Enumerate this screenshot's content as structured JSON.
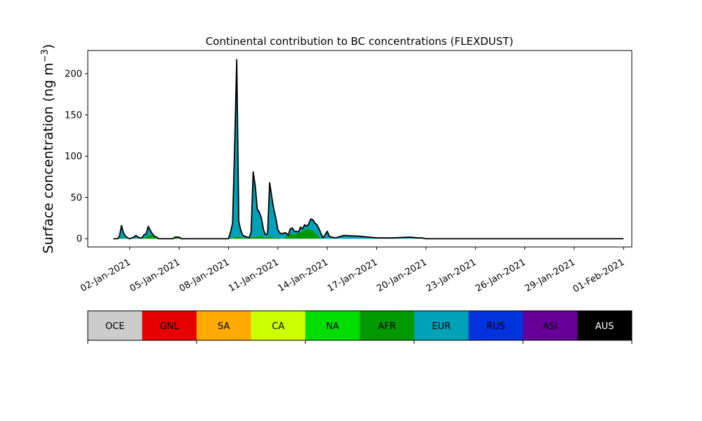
{
  "chart_data": {
    "type": "area",
    "title": "Continental contribution to BC concentrations (FLEXDUST)",
    "xlabel": "",
    "ylabel": "Surface concentration (ng m",
    "ylabel_sup": "−3",
    "ylabel_close": ")",
    "ylim": [
      -10,
      228
    ],
    "yticks": [
      0,
      50,
      100,
      150,
      200
    ],
    "xlim_days": [
      -1.55,
      31.5
    ],
    "xticks": [
      "02-Jan-2021",
      "05-Jan-2021",
      "08-Jan-2021",
      "11-Jan-2021",
      "14-Jan-2021",
      "17-Jan-2021",
      "20-Jan-2021",
      "23-Jan-2021",
      "26-Jan-2021",
      "29-Jan-2021",
      "01-Feb-2021"
    ],
    "grid": false,
    "stacked": true,
    "x_dates": [
      "01-Jan-2021 00:00",
      "01-Jan-2021 03:00",
      "01-Jan-2021 06:00",
      "01-Jan-2021 09:00",
      "01-Jan-2021 12:00",
      "01-Jan-2021 15:00",
      "01-Jan-2021 18:00",
      "01-Jan-2021 21:00",
      "02-Jan-2021 00:00",
      "02-Jan-2021 03:00",
      "02-Jan-2021 06:00",
      "02-Jan-2021 09:00",
      "02-Jan-2021 12:00",
      "02-Jan-2021 15:00",
      "02-Jan-2021 18:00",
      "02-Jan-2021 21:00",
      "03-Jan-2021 00:00",
      "03-Jan-2021 03:00",
      "03-Jan-2021 06:00",
      "03-Jan-2021 09:00",
      "03-Jan-2021 12:00",
      "03-Jan-2021 15:00",
      "03-Jan-2021 18:00",
      "03-Jan-2021 21:00",
      "04-Jan-2021 00:00",
      "04-Jan-2021 03:00",
      "04-Jan-2021 06:00",
      "04-Jan-2021 09:00",
      "04-Jan-2021 12:00",
      "04-Jan-2021 15:00",
      "04-Jan-2021 18:00",
      "04-Jan-2021 21:00",
      "05-Jan-2021 00:00",
      "05-Jan-2021 03:00",
      "05-Jan-2021 06:00",
      "05-Jan-2021 09:00",
      "05-Jan-2021 12:00",
      "05-Jan-2021 15:00",
      "05-Jan-2021 18:00",
      "05-Jan-2021 21:00",
      "06-Jan-2021 00:00",
      "06-Jan-2021 03:00",
      "06-Jan-2021 06:00",
      "06-Jan-2021 09:00",
      "06-Jan-2021 12:00",
      "06-Jan-2021 15:00",
      "06-Jan-2021 18:00",
      "06-Jan-2021 21:00",
      "07-Jan-2021 00:00",
      "07-Jan-2021 03:00",
      "07-Jan-2021 06:00",
      "07-Jan-2021 09:00",
      "07-Jan-2021 12:00",
      "07-Jan-2021 15:00",
      "07-Jan-2021 18:00",
      "07-Jan-2021 21:00",
      "08-Jan-2021 00:00",
      "08-Jan-2021 03:00",
      "08-Jan-2021 06:00",
      "08-Jan-2021 09:00",
      "08-Jan-2021 12:00",
      "08-Jan-2021 15:00",
      "08-Jan-2021 18:00",
      "08-Jan-2021 21:00",
      "09-Jan-2021 00:00",
      "09-Jan-2021 03:00",
      "09-Jan-2021 06:00",
      "09-Jan-2021 09:00",
      "09-Jan-2021 12:00",
      "09-Jan-2021 15:00",
      "09-Jan-2021 18:00",
      "09-Jan-2021 21:00",
      "10-Jan-2021 00:00",
      "10-Jan-2021 03:00",
      "10-Jan-2021 06:00",
      "10-Jan-2021 09:00",
      "10-Jan-2021 12:00",
      "10-Jan-2021 15:00",
      "10-Jan-2021 18:00",
      "10-Jan-2021 21:00",
      "11-Jan-2021 00:00",
      "11-Jan-2021 03:00",
      "11-Jan-2021 06:00",
      "11-Jan-2021 09:00",
      "11-Jan-2021 12:00",
      "11-Jan-2021 15:00",
      "11-Jan-2021 18:00",
      "11-Jan-2021 21:00",
      "12-Jan-2021 00:00",
      "12-Jan-2021 03:00",
      "12-Jan-2021 06:00",
      "12-Jan-2021 09:00",
      "12-Jan-2021 12:00",
      "12-Jan-2021 15:00",
      "12-Jan-2021 18:00",
      "12-Jan-2021 21:00",
      "13-Jan-2021 00:00",
      "13-Jan-2021 03:00",
      "13-Jan-2021 06:00",
      "13-Jan-2021 09:00",
      "13-Jan-2021 12:00",
      "13-Jan-2021 15:00",
      "13-Jan-2021 18:00",
      "13-Jan-2021 21:00",
      "14-Jan-2021 00:00",
      "14-Jan-2021 03:00",
      "14-Jan-2021 06:00",
      "14-Jan-2021 12:00",
      "15-Jan-2021 00:00",
      "16-Jan-2021 00:00",
      "17-Jan-2021 00:00",
      "18-Jan-2021 00:00",
      "19-Jan-2021 00:00",
      "19-Jan-2021 12:00",
      "19-Jan-2021 18:00",
      "20-Jan-2021 00:00",
      "20-Jan-2021 06:00",
      "20-Jan-2021 12:00",
      "21-Jan-2021 00:00",
      "21-Jan-2021 12:00",
      "21-Jan-2021 18:00",
      "22-Jan-2021 00:00",
      "22-Jan-2021 06:00",
      "22-Jan-2021 12:00",
      "22-Jan-2021 18:00",
      "23-Jan-2021 00:00",
      "23-Jan-2021 06:00",
      "23-Jan-2021 12:00",
      "23-Jan-2021 18:00",
      "24-Jan-2021 00:00",
      "24-Jan-2021 12:00",
      "25-Jan-2021 00:00",
      "25-Jan-2021 06:00",
      "25-Jan-2021 09:00",
      "25-Jan-2021 15:00",
      "25-Jan-2021 21:00",
      "26-Jan-2021 03:00",
      "26-Jan-2021 09:00",
      "26-Jan-2021 12:00",
      "27-Jan-2021 00:00",
      "28-Jan-2021 00:00",
      "29-Jan-2021 00:00",
      "30-Jan-2021 00:00",
      "31-Jan-2021 00:00",
      "01-Feb-2021 00:00"
    ],
    "series": [
      {
        "name": "AFR",
        "color": "#009900",
        "values": [
          0,
          0,
          0,
          1,
          1,
          1,
          0,
          0,
          0,
          0,
          0,
          0,
          0,
          0,
          0,
          1,
          2,
          4,
          5,
          4,
          2,
          1,
          0,
          0,
          0,
          0,
          0,
          0,
          0,
          0,
          1,
          1,
          1,
          0,
          0,
          0,
          0,
          0,
          0,
          0,
          0,
          0,
          0,
          0,
          0,
          0,
          0,
          0,
          0,
          0,
          0,
          0,
          0,
          0,
          0,
          0,
          0,
          1,
          1,
          2,
          3,
          3,
          2,
          1,
          1,
          1,
          1,
          2,
          2,
          2,
          3,
          3,
          5,
          2,
          1,
          2,
          3,
          2,
          1,
          1,
          2,
          1,
          0,
          1,
          2,
          3,
          6,
          6,
          5,
          6,
          7,
          8,
          9,
          11,
          12,
          12,
          11,
          10,
          7,
          5,
          2,
          1,
          0,
          0,
          0,
          0,
          0,
          0,
          0,
          0,
          0,
          0,
          0,
          0,
          0,
          0,
          0,
          0,
          0,
          0,
          0,
          0,
          0,
          0,
          0,
          0,
          0,
          0,
          0,
          0,
          0,
          0,
          0,
          0,
          0,
          0,
          0,
          0,
          0,
          0,
          0,
          0
        ]
      },
      {
        "name": "EUR",
        "color": "#00a2b8",
        "values": [
          0,
          0,
          0,
          2,
          13,
          6,
          3,
          1,
          0,
          1,
          2,
          4,
          2,
          1,
          1,
          4,
          4,
          9,
          4,
          2,
          1,
          1,
          0,
          0,
          0,
          0,
          0,
          0,
          0,
          0,
          1,
          1,
          1,
          0,
          0,
          0,
          0,
          0,
          0,
          0,
          0,
          0,
          0,
          0,
          0,
          0,
          0,
          0,
          0,
          0,
          0,
          0,
          0,
          0,
          0,
          0,
          0,
          5,
          14,
          100,
          196,
          15,
          6,
          3,
          2,
          1,
          0,
          6,
          71,
          57,
          30,
          27,
          18,
          8,
          4,
          4,
          60,
          44,
          32,
          22,
          8,
          6,
          6,
          6,
          5,
          1,
          6,
          7,
          4,
          3,
          1,
          6,
          3,
          6,
          3,
          6,
          13,
          13,
          12,
          12,
          10,
          5,
          1,
          5,
          9,
          3,
          2,
          1,
          4,
          3,
          1,
          1,
          2,
          1,
          1,
          0,
          0,
          0,
          0,
          0,
          0,
          0,
          0,
          0,
          0,
          0,
          0,
          0,
          0,
          0,
          0,
          0,
          0,
          0,
          0,
          0,
          0,
          0,
          0,
          0,
          0,
          0
        ]
      },
      {
        "name": "RUS",
        "color": "#0033dd",
        "values": [
          0,
          0,
          0,
          0,
          1,
          0,
          0,
          0,
          0,
          0,
          0,
          0,
          0,
          0,
          0,
          0,
          0,
          1,
          1,
          0,
          0,
          0,
          0,
          0,
          0,
          0,
          0,
          0,
          0,
          0,
          0,
          0,
          0,
          0,
          0,
          0,
          0,
          0,
          0,
          0,
          0,
          0,
          0,
          0,
          0,
          0,
          0,
          0,
          0,
          0,
          0,
          0,
          0,
          0,
          0,
          0,
          0,
          1,
          2,
          6,
          10,
          2,
          1,
          0,
          0,
          0,
          0,
          0,
          4,
          3,
          2,
          1,
          1,
          1,
          0,
          0,
          3,
          3,
          2,
          1,
          1,
          0,
          0,
          0,
          0,
          0,
          0,
          0,
          0,
          0,
          0,
          0,
          0,
          0,
          0,
          0,
          0,
          0,
          0,
          0,
          0,
          0,
          0,
          0,
          0,
          0,
          0,
          0,
          0,
          0,
          0,
          0,
          0,
          0,
          0,
          0,
          0,
          0,
          0,
          0,
          0,
          0,
          0,
          0,
          0,
          0,
          0,
          0,
          0,
          0,
          0,
          0,
          0,
          0,
          0,
          0,
          0,
          0,
          0,
          0,
          0,
          0
        ]
      },
      {
        "name": "ASI",
        "color": "#660099",
        "values": [
          0,
          0,
          0,
          0,
          1,
          0,
          0,
          0,
          0,
          0,
          0,
          0,
          0,
          0,
          0,
          0,
          0,
          1,
          0,
          0,
          0,
          0,
          0,
          0,
          0,
          0,
          0,
          0,
          0,
          0,
          0,
          0,
          0,
          0,
          0,
          0,
          0,
          0,
          0,
          0,
          0,
          0,
          0,
          0,
          0,
          0,
          0,
          0,
          0,
          0,
          0,
          0,
          0,
          0,
          0,
          0,
          0,
          1,
          2,
          5,
          8,
          1,
          1,
          0,
          0,
          0,
          0,
          0,
          4,
          2,
          1,
          1,
          1,
          0,
          0,
          0,
          2,
          2,
          1,
          1,
          0,
          0,
          0,
          0,
          0,
          0,
          0,
          0,
          0,
          0,
          0,
          0,
          0,
          0,
          0,
          0,
          0,
          0,
          0,
          0,
          0,
          0,
          0,
          0,
          0,
          0,
          0,
          0,
          0,
          0,
          0,
          0,
          0,
          0,
          0,
          0,
          0,
          0,
          0,
          0,
          0,
          0,
          0,
          0,
          0,
          0,
          0,
          0,
          0,
          0,
          0,
          0,
          0,
          0,
          0,
          0,
          0,
          0,
          0,
          0,
          0,
          0
        ]
      }
    ],
    "legend": {
      "placement": "below",
      "entries": [
        {
          "name": "OCE",
          "color": "#cccccc",
          "text_color": "#000000"
        },
        {
          "name": "GNL",
          "color": "#e60000",
          "text_color": "#000000"
        },
        {
          "name": "SA",
          "color": "#ffaa00",
          "text_color": "#000000"
        },
        {
          "name": "CA",
          "color": "#ccff00",
          "text_color": "#000000"
        },
        {
          "name": "NA",
          "color": "#00dd00",
          "text_color": "#000000"
        },
        {
          "name": "AFR",
          "color": "#009900",
          "text_color": "#000000"
        },
        {
          "name": "EUR",
          "color": "#00a2b8",
          "text_color": "#000000"
        },
        {
          "name": "RUS",
          "color": "#0033dd",
          "text_color": "#000000"
        },
        {
          "name": "ASI",
          "color": "#660099",
          "text_color": "#000000"
        },
        {
          "name": "AUS",
          "color": "#000000",
          "text_color": "#ffffff"
        }
      ]
    },
    "total_line_color": "#000000"
  }
}
